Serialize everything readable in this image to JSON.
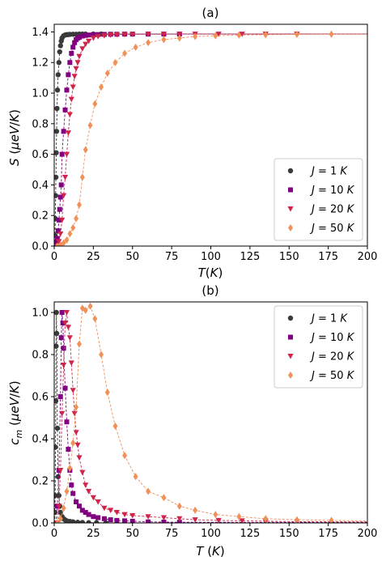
{
  "colors": {
    "J1": "#3a3a3a",
    "J10": "#800080",
    "J20": "#d0254a",
    "J50": "#f0915a"
  },
  "chart_data": [
    {
      "type": "scatter",
      "title": "(a)",
      "xlabel": "T(K)",
      "ylabel": "S (μeV/K)",
      "xlim": [
        0,
        200
      ],
      "ylim": [
        0,
        1.45
      ],
      "xticks": [
        "0",
        "25",
        "50",
        "75",
        "100",
        "125",
        "150",
        "175",
        "200"
      ],
      "yticks": [
        "0.0",
        "0.2",
        "0.4",
        "0.6",
        "0.8",
        "1.0",
        "1.2",
        "1.4"
      ],
      "legend_position": "lower-right",
      "fit_lines": true,
      "series": [
        {
          "name": "J = 1 K",
          "key": "J1",
          "marker": "circle",
          "x": [
            0.1,
            0.3,
            0.5,
            0.7,
            0.9,
            1.1,
            1.3,
            1.5,
            1.8,
            2.1,
            2.5,
            3,
            3.5,
            4,
            4.5,
            5,
            6,
            7,
            8,
            9,
            10,
            12,
            14,
            16,
            18,
            20,
            25,
            30
          ],
          "y": [
            0.0,
            0.02,
            0.07,
            0.18,
            0.33,
            0.45,
            0.61,
            0.75,
            0.9,
            1.02,
            1.12,
            1.2,
            1.27,
            1.31,
            1.34,
            1.36,
            1.375,
            1.38,
            1.382,
            1.383,
            1.384,
            1.385,
            1.385,
            1.386,
            1.386,
            1.386,
            1.386,
            1.386
          ]
        },
        {
          "name": "J = 10 K",
          "key": "J10",
          "marker": "square",
          "x": [
            1,
            1.5,
            2,
            2.5,
            3,
            3.5,
            4,
            4.5,
            5,
            6,
            7,
            8,
            9,
            10,
            11,
            12,
            13,
            14,
            15,
            16,
            18,
            20,
            22,
            25,
            28,
            32,
            36,
            40,
            45,
            50,
            60,
            70,
            80
          ],
          "y": [
            0.0,
            0.02,
            0.05,
            0.1,
            0.17,
            0.24,
            0.32,
            0.4,
            0.6,
            0.75,
            0.89,
            1.02,
            1.12,
            1.2,
            1.26,
            1.3,
            1.33,
            1.35,
            1.36,
            1.365,
            1.373,
            1.377,
            1.38,
            1.382,
            1.383,
            1.384,
            1.385,
            1.385,
            1.386,
            1.386,
            1.386,
            1.386,
            1.386
          ]
        },
        {
          "name": "J = 20 K",
          "key": "J20",
          "marker": "triangle-down",
          "x": [
            2,
            3,
            4,
            5,
            6,
            7,
            8,
            9,
            10,
            11,
            12,
            13,
            14,
            15,
            16,
            18,
            20,
            22,
            25,
            28,
            32,
            36,
            40,
            45,
            50,
            60,
            70,
            80,
            90,
            105,
            120,
            135,
            155
          ],
          "y": [
            0.0,
            0.03,
            0.08,
            0.17,
            0.33,
            0.45,
            0.6,
            0.74,
            0.86,
            0.96,
            1.04,
            1.11,
            1.16,
            1.2,
            1.24,
            1.29,
            1.32,
            1.34,
            1.36,
            1.37,
            1.376,
            1.38,
            1.382,
            1.383,
            1.384,
            1.385,
            1.385,
            1.386,
            1.386,
            1.386,
            1.386,
            1.386,
            1.386
          ]
        },
        {
          "name": "J = 50 K",
          "key": "J50",
          "marker": "diamond",
          "x": [
            2,
            4,
            6,
            8,
            10,
            12,
            14,
            16,
            18,
            20,
            23,
            26,
            30,
            34,
            39,
            45,
            52,
            60,
            70,
            80,
            90,
            103,
            118,
            135,
            155,
            177
          ],
          "y": [
            0.0,
            0.01,
            0.02,
            0.04,
            0.08,
            0.12,
            0.18,
            0.27,
            0.45,
            0.63,
            0.79,
            0.93,
            1.04,
            1.13,
            1.2,
            1.26,
            1.3,
            1.33,
            1.35,
            1.36,
            1.37,
            1.375,
            1.38,
            1.382,
            1.384,
            1.385
          ]
        }
      ]
    },
    {
      "type": "scatter",
      "title": "(b)",
      "xlabel": "T (K)",
      "ylabel": "c_m (μeV/K)",
      "xlim": [
        0,
        200
      ],
      "ylim": [
        0,
        1.05
      ],
      "xticks": [
        "0",
        "25",
        "50",
        "75",
        "100",
        "125",
        "150",
        "175",
        "200"
      ],
      "yticks": [
        "0.0",
        "0.2",
        "0.4",
        "0.6",
        "0.8",
        "1.0"
      ],
      "legend_position": "upper-right",
      "fit_lines": true,
      "series": [
        {
          "name": "J = 1 K",
          "key": "J1",
          "marker": "circle",
          "x": [
            0.2,
            0.4,
            0.6,
            0.8,
            1.0,
            1.2,
            1.4,
            1.6,
            2.0,
            2.5,
            3,
            3.5,
            4,
            5,
            6,
            7,
            8,
            10,
            12,
            15,
            18,
            22,
            27,
            33
          ],
          "y": [
            0.0,
            0.05,
            0.13,
            0.36,
            0.58,
            0.84,
            1.0,
            0.9,
            0.45,
            0.22,
            0.13,
            0.08,
            0.05,
            0.03,
            0.02,
            0.014,
            0.01,
            0.007,
            0.005,
            0.003,
            0.002,
            0.001,
            0.001,
            0.0
          ]
        },
        {
          "name": "J = 10 K",
          "key": "J10",
          "marker": "square",
          "x": [
            1,
            2,
            3,
            4,
            4.5,
            5,
            5.5,
            6,
            7,
            8,
            9,
            10,
            11,
            12,
            14,
            16,
            18,
            20,
            22,
            25,
            28,
            32,
            36,
            40,
            45,
            50,
            60,
            70,
            80
          ],
          "y": [
            0.0,
            0.08,
            0.25,
            0.6,
            0.88,
            1.0,
            0.95,
            0.83,
            0.64,
            0.48,
            0.35,
            0.25,
            0.18,
            0.14,
            0.1,
            0.08,
            0.06,
            0.05,
            0.04,
            0.03,
            0.025,
            0.02,
            0.015,
            0.012,
            0.01,
            0.008,
            0.005,
            0.004,
            0.003
          ]
        },
        {
          "name": "J = 20 K",
          "key": "J20",
          "marker": "triangle-down",
          "x": [
            2,
            3,
            4,
            5,
            6,
            7,
            8,
            9,
            10,
            11,
            12,
            13,
            14,
            15,
            16,
            18,
            20,
            22,
            25,
            28,
            32,
            36,
            40,
            45,
            50,
            60,
            70,
            80,
            90,
            105,
            120,
            135,
            155
          ],
          "y": [
            0.0,
            0.08,
            0.25,
            0.52,
            0.75,
            0.95,
            1.0,
            0.93,
            0.88,
            0.76,
            0.63,
            0.52,
            0.43,
            0.37,
            0.31,
            0.24,
            0.18,
            0.15,
            0.12,
            0.1,
            0.07,
            0.06,
            0.05,
            0.04,
            0.035,
            0.03,
            0.025,
            0.02,
            0.015,
            0.012,
            0.01,
            0.008,
            0.006
          ]
        },
        {
          "name": "J = 50 K",
          "key": "J50",
          "marker": "diamond",
          "x": [
            2,
            4,
            6,
            8,
            10,
            12,
            14,
            16,
            18,
            20,
            23,
            26,
            30,
            34,
            39,
            45,
            52,
            60,
            70,
            80,
            90,
            103,
            118,
            135,
            155,
            177
          ],
          "y": [
            0.0,
            0.02,
            0.07,
            0.15,
            0.26,
            0.38,
            0.55,
            0.85,
            1.02,
            1.01,
            1.03,
            0.97,
            0.8,
            0.62,
            0.46,
            0.32,
            0.22,
            0.15,
            0.12,
            0.08,
            0.06,
            0.04,
            0.03,
            0.02,
            0.015,
            0.012
          ]
        }
      ]
    }
  ]
}
